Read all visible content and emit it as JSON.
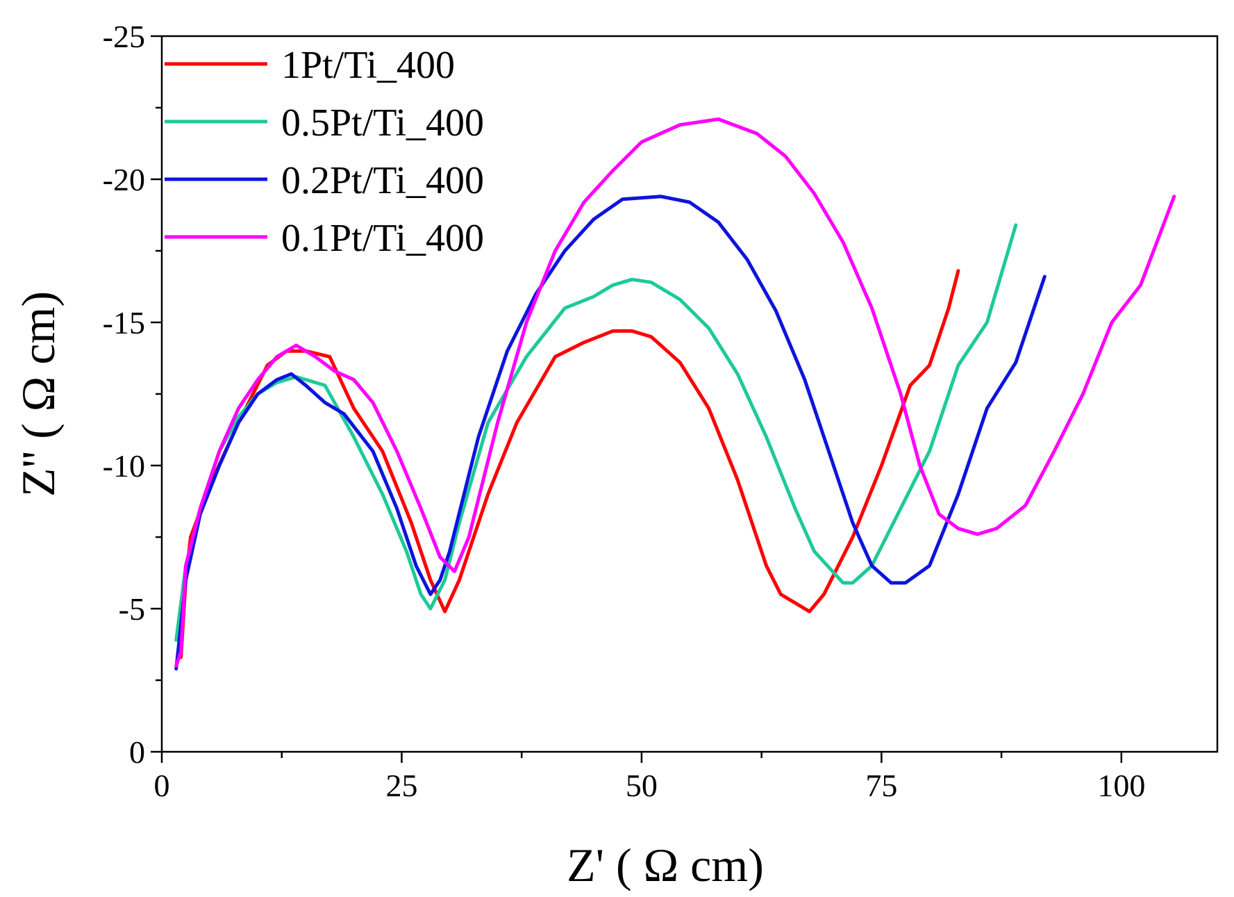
{
  "chart_data": {
    "type": "line",
    "title": "",
    "xlabel": "Z' ( Ω cm)",
    "ylabel": "Z'' ( Ω cm)",
    "xlim": [
      0,
      110
    ],
    "ylim": [
      0,
      -25
    ],
    "x_ticks": [
      0,
      25,
      50,
      75,
      100
    ],
    "x_tick_labels": [
      "0",
      "25",
      "50",
      "75",
      "100"
    ],
    "y_ticks": [
      0,
      -5,
      -10,
      -15,
      -20,
      -25
    ],
    "y_tick_labels": [
      "0",
      "-5",
      "-10",
      "-15",
      "-20",
      "-25"
    ],
    "grid": false,
    "legend_position": "top-left",
    "series": [
      {
        "name": "1Pt/Ti_400",
        "color": "#ff0000",
        "x": [
          2.0,
          2.5,
          3,
          5,
          8,
          11,
          13,
          15,
          17.5,
          20,
          23,
          26,
          28,
          29.5,
          31,
          34,
          37,
          41,
          44,
          47,
          49,
          51,
          54,
          57,
          60,
          63,
          64.5,
          67.5,
          69,
          72,
          75,
          78,
          80,
          82,
          83
        ],
        "y": [
          -3.3,
          -6,
          -7.5,
          -9.3,
          -11.5,
          -13.5,
          -14.0,
          -14.0,
          -13.8,
          -12,
          -10.5,
          -8,
          -6,
          -4.9,
          -6,
          -9,
          -11.5,
          -13.8,
          -14.3,
          -14.7,
          -14.7,
          -14.5,
          -13.6,
          -12,
          -9.5,
          -6.5,
          -5.5,
          -4.9,
          -5.5,
          -7.5,
          -10,
          -12.8,
          -13.5,
          -15.5,
          -16.8
        ]
      },
      {
        "name": "0.5Pt/Ti_400",
        "color": "#1fc99a",
        "x": [
          1.5,
          2.5,
          4,
          6,
          8,
          10,
          12,
          14,
          17,
          20,
          23,
          25.5,
          27,
          28,
          29.5,
          31,
          34,
          38,
          42,
          45,
          47,
          49,
          51,
          54,
          57,
          60,
          63,
          66,
          68,
          71,
          72,
          74,
          77,
          80,
          83,
          86,
          89
        ],
        "y": [
          -3.9,
          -6.5,
          -8.5,
          -10.5,
          -11.7,
          -12.5,
          -12.9,
          -13.1,
          -12.8,
          -11,
          -9,
          -7,
          -5.5,
          -5.0,
          -6,
          -8,
          -11.5,
          -13.8,
          -15.5,
          -15.9,
          -16.3,
          -16.5,
          -16.4,
          -15.8,
          -14.8,
          -13.2,
          -11,
          -8.5,
          -7,
          -5.9,
          -5.9,
          -6.5,
          -8.5,
          -10.5,
          -13.5,
          -15,
          -18.4
        ]
      },
      {
        "name": "0.2Pt/Ti_400",
        "color": "#0d14dc",
        "x": [
          1.5,
          2.5,
          4,
          6,
          8,
          10,
          12,
          13.5,
          15,
          17,
          19,
          22,
          24.5,
          26.5,
          28,
          29,
          30,
          33,
          36,
          39,
          42,
          45,
          48,
          52,
          55,
          58,
          61,
          64,
          67,
          70,
          72,
          74,
          76,
          77.5,
          80,
          83,
          86,
          89,
          92
        ],
        "y": [
          -2.9,
          -6,
          -8.3,
          -10,
          -11.5,
          -12.5,
          -13,
          -13.2,
          -12.8,
          -12.2,
          -11.8,
          -10.5,
          -8.5,
          -6.5,
          -5.5,
          -6,
          -7,
          -11,
          -14,
          -16,
          -17.5,
          -18.6,
          -19.3,
          -19.4,
          -19.2,
          -18.5,
          -17.2,
          -15.4,
          -13,
          -10,
          -8,
          -6.5,
          -5.9,
          -5.9,
          -6.5,
          -9,
          -12,
          -13.6,
          -16.6
        ]
      },
      {
        "name": "0.1Pt/Ti_400",
        "color": "#ff00ff",
        "x": [
          1.5,
          2.0,
          2.5,
          4,
          6,
          8,
          10,
          12,
          14,
          16,
          18,
          20,
          22,
          24.5,
          27,
          29,
          30.5,
          32,
          35,
          38,
          41,
          44,
          47,
          50,
          54,
          58,
          62,
          65,
          68,
          71,
          74,
          77,
          79,
          81,
          83,
          85,
          87,
          90,
          93,
          96,
          99,
          102,
          105.5
        ],
        "y": [
          -3.0,
          -3.5,
          -6.5,
          -8.5,
          -10.5,
          -12,
          -13,
          -13.8,
          -14.2,
          -13.8,
          -13.3,
          -13,
          -12.2,
          -10.5,
          -8.5,
          -6.8,
          -6.3,
          -7.5,
          -11.5,
          -15,
          -17.5,
          -19.2,
          -20.3,
          -21.3,
          -21.9,
          -22.1,
          -21.6,
          -20.8,
          -19.5,
          -17.8,
          -15.5,
          -12.5,
          -10,
          -8.3,
          -7.8,
          -7.6,
          -7.8,
          -8.6,
          -10.5,
          -12.5,
          -15,
          -16.3,
          -19.4
        ]
      }
    ]
  }
}
